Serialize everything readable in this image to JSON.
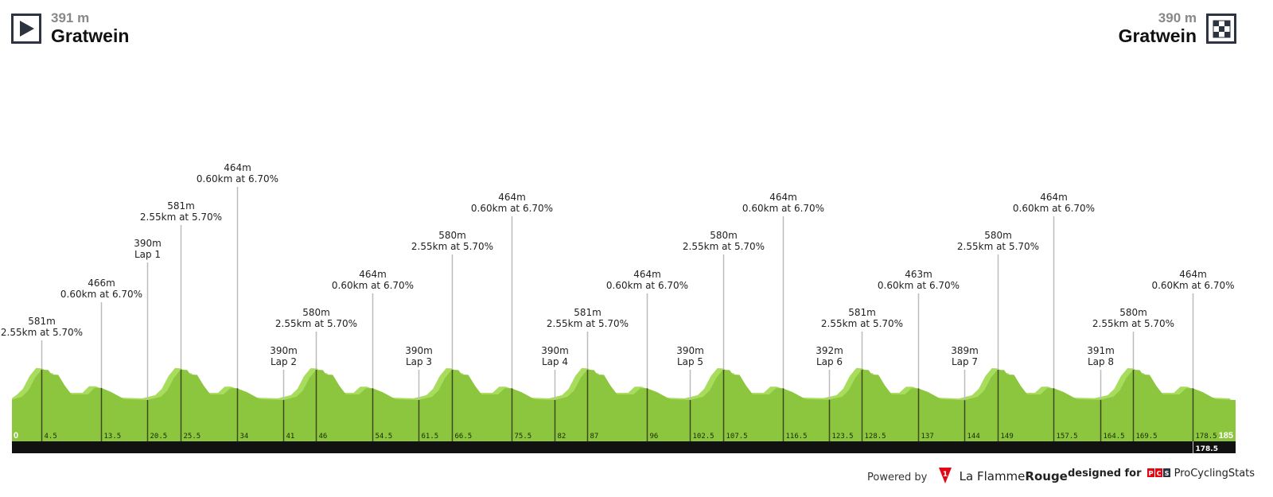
{
  "start": {
    "altitude": "391 m",
    "name": "Gratwein",
    "icon": "play-icon"
  },
  "finish": {
    "altitude": "390 m",
    "name": "Gratwein",
    "icon": "checkered-flag-icon"
  },
  "footer": {
    "powered_by": "Powered by",
    "brand_1": "La Flamme",
    "brand_1_bold": "Rouge",
    "designed_for": "designed for",
    "pcs_logo": "PCS",
    "brand_2": "ProCyclingStats"
  },
  "colors": {
    "profile": "#8cc63f",
    "profile_light": "#a8dc5c",
    "bar": "#111111",
    "marker_line": "#bbbbbb"
  },
  "chart_data": {
    "type": "area",
    "xlabel": "",
    "ylabel": "",
    "xlim": [
      0,
      185
    ],
    "x_start_label": "0",
    "x_end_label": "185",
    "x_bar_label": "178.5",
    "profile": [
      [
        0,
        391
      ],
      [
        1.5,
        410
      ],
      [
        2.5,
        450
      ],
      [
        3.5,
        530
      ],
      [
        4.5,
        581
      ],
      [
        5.5,
        578
      ],
      [
        6,
        550
      ],
      [
        7,
        548
      ],
      [
        8,
        480
      ],
      [
        9,
        425
      ],
      [
        11.5,
        425
      ],
      [
        12.5,
        466
      ],
      [
        13.5,
        466
      ],
      [
        15,
        440
      ],
      [
        17,
        395
      ],
      [
        20.5,
        390
      ],
      [
        22.5,
        410
      ],
      [
        23.5,
        450
      ],
      [
        24.5,
        530
      ],
      [
        25.5,
        581
      ],
      [
        26.5,
        578
      ],
      [
        27,
        550
      ],
      [
        28,
        548
      ],
      [
        29,
        480
      ],
      [
        30,
        425
      ],
      [
        32,
        425
      ],
      [
        33,
        464
      ],
      [
        34,
        464
      ],
      [
        35.5,
        440
      ],
      [
        37.5,
        395
      ],
      [
        41,
        390
      ],
      [
        43,
        410
      ],
      [
        44,
        450
      ],
      [
        45,
        530
      ],
      [
        46,
        580
      ],
      [
        47,
        578
      ],
      [
        47.5,
        550
      ],
      [
        48.5,
        548
      ],
      [
        49.5,
        480
      ],
      [
        50.5,
        425
      ],
      [
        52.5,
        425
      ],
      [
        53.5,
        464
      ],
      [
        54.5,
        464
      ],
      [
        56,
        440
      ],
      [
        58,
        395
      ],
      [
        61.5,
        390
      ],
      [
        63.5,
        410
      ],
      [
        64.5,
        450
      ],
      [
        65.5,
        530
      ],
      [
        66.5,
        580
      ],
      [
        67.5,
        578
      ],
      [
        68,
        550
      ],
      [
        69,
        548
      ],
      [
        70,
        480
      ],
      [
        71,
        425
      ],
      [
        73.5,
        425
      ],
      [
        74.5,
        464
      ],
      [
        75.5,
        464
      ],
      [
        77,
        440
      ],
      [
        79,
        395
      ],
      [
        82,
        390
      ],
      [
        84,
        410
      ],
      [
        85,
        450
      ],
      [
        86,
        530
      ],
      [
        87,
        581
      ],
      [
        88,
        578
      ],
      [
        88.5,
        550
      ],
      [
        89.5,
        548
      ],
      [
        90.5,
        480
      ],
      [
        91.5,
        425
      ],
      [
        94,
        425
      ],
      [
        95,
        464
      ],
      [
        96,
        464
      ],
      [
        97.5,
        440
      ],
      [
        99.5,
        395
      ],
      [
        102.5,
        390
      ],
      [
        104.5,
        410
      ],
      [
        105.5,
        450
      ],
      [
        106.5,
        530
      ],
      [
        107.5,
        580
      ],
      [
        108.5,
        578
      ],
      [
        109,
        550
      ],
      [
        110,
        548
      ],
      [
        111,
        480
      ],
      [
        112,
        425
      ],
      [
        114.5,
        425
      ],
      [
        115.5,
        464
      ],
      [
        116.5,
        464
      ],
      [
        118,
        440
      ],
      [
        120,
        395
      ],
      [
        123.5,
        392
      ],
      [
        125.5,
        410
      ],
      [
        126.5,
        450
      ],
      [
        127.5,
        530
      ],
      [
        128.5,
        581
      ],
      [
        129.5,
        578
      ],
      [
        130,
        550
      ],
      [
        131,
        548
      ],
      [
        132,
        480
      ],
      [
        133,
        425
      ],
      [
        135,
        425
      ],
      [
        136,
        463
      ],
      [
        137,
        463
      ],
      [
        138.5,
        440
      ],
      [
        140.5,
        395
      ],
      [
        144,
        389
      ],
      [
        146,
        410
      ],
      [
        147,
        450
      ],
      [
        148,
        530
      ],
      [
        149,
        580
      ],
      [
        150,
        578
      ],
      [
        150.5,
        550
      ],
      [
        151.5,
        548
      ],
      [
        152.5,
        480
      ],
      [
        153.5,
        425
      ],
      [
        155.5,
        425
      ],
      [
        156.5,
        464
      ],
      [
        157.5,
        464
      ],
      [
        159,
        440
      ],
      [
        161,
        395
      ],
      [
        164.5,
        391
      ],
      [
        166.5,
        410
      ],
      [
        167.5,
        450
      ],
      [
        168.5,
        530
      ],
      [
        169.5,
        580
      ],
      [
        170.5,
        578
      ],
      [
        171,
        550
      ],
      [
        172,
        548
      ],
      [
        173,
        480
      ],
      [
        174,
        425
      ],
      [
        176.5,
        425
      ],
      [
        177.5,
        464
      ],
      [
        178.5,
        464
      ],
      [
        180,
        440
      ],
      [
        182,
        395
      ],
      [
        185,
        390
      ]
    ],
    "markers": [
      {
        "km": "4.5",
        "elev": 581,
        "line1": "581m",
        "line2": "2.55km at 5.70%"
      },
      {
        "km": "13.5",
        "elev": 466,
        "line1": "466m",
        "line2": "0.60km at 6.70%"
      },
      {
        "km": "20.5",
        "elev": 390,
        "line1": "390m",
        "line2": "Lap 1"
      },
      {
        "km": "25.5",
        "elev": 581,
        "line1": "581m",
        "line2": "2.55km at 5.70%"
      },
      {
        "km": "34",
        "elev": 464,
        "line1": "464m",
        "line2": "0.60km at 6.70%"
      },
      {
        "km": "41",
        "elev": 390,
        "line1": "390m",
        "line2": "Lap 2"
      },
      {
        "km": "46",
        "elev": 580,
        "line1": "580m",
        "line2": "2.55km at 5.70%"
      },
      {
        "km": "54.5",
        "elev": 464,
        "line1": "464m",
        "line2": "0.60km at 6.70%"
      },
      {
        "km": "61.5",
        "elev": 390,
        "line1": "390m",
        "line2": "Lap 3"
      },
      {
        "km": "66.5",
        "elev": 580,
        "line1": "580m",
        "line2": "2.55km at 5.70%"
      },
      {
        "km": "75.5",
        "elev": 464,
        "line1": "464m",
        "line2": "0.60km at 6.70%"
      },
      {
        "km": "82",
        "elev": 390,
        "line1": "390m",
        "line2": "Lap 4"
      },
      {
        "km": "87",
        "elev": 581,
        "line1": "581m",
        "line2": "2.55km at 5.70%"
      },
      {
        "km": "96",
        "elev": 464,
        "line1": "464m",
        "line2": "0.60km at 6.70%"
      },
      {
        "km": "102.5",
        "elev": 390,
        "line1": "390m",
        "line2": "Lap 5"
      },
      {
        "km": "107.5",
        "elev": 580,
        "line1": "580m",
        "line2": "2.55km at 5.70%"
      },
      {
        "km": "116.5",
        "elev": 464,
        "line1": "464m",
        "line2": "0.60km at 6.70%"
      },
      {
        "km": "123.5",
        "elev": 392,
        "line1": "392m",
        "line2": "Lap 6"
      },
      {
        "km": "128.5",
        "elev": 581,
        "line1": "581m",
        "line2": "2.55km at 5.70%"
      },
      {
        "km": "137",
        "elev": 463,
        "line1": "463m",
        "line2": "0.60km at 6.70%"
      },
      {
        "km": "144",
        "elev": 389,
        "line1": "389m",
        "line2": "Lap 7"
      },
      {
        "km": "149",
        "elev": 580,
        "line1": "580m",
        "line2": "2.55km at 5.70%"
      },
      {
        "km": "157.5",
        "elev": 464,
        "line1": "464m",
        "line2": "0.60km at 6.70%"
      },
      {
        "km": "164.5",
        "elev": 391,
        "line1": "391m",
        "line2": "Lap 8"
      },
      {
        "km": "169.5",
        "elev": 580,
        "line1": "580m",
        "line2": "2.55km at 5.70%"
      },
      {
        "km": "178.5",
        "elev": 464,
        "line1": "464m",
        "line2": "0.60Km at 6.70%"
      }
    ]
  }
}
